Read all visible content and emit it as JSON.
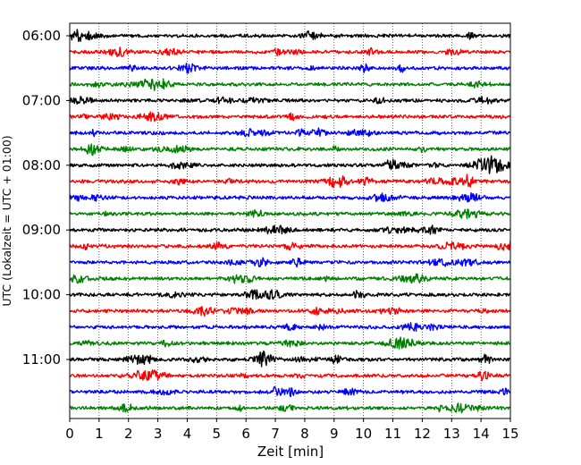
{
  "chart_data": {
    "type": "line",
    "title": "",
    "xlabel": "Zeit  [min]",
    "ylabel": "UTC (Lokalzeit = UTC + 01:00)",
    "xlim": [
      0,
      15
    ],
    "x_ticks": [
      0,
      1,
      2,
      3,
      4,
      5,
      6,
      7,
      8,
      9,
      10,
      11,
      12,
      13,
      14,
      15
    ],
    "y_tick_labels": [
      "06:00",
      "07:00",
      "08:00",
      "09:00",
      "10:00",
      "11:00"
    ],
    "grid": "vertical dotted",
    "trace_colors": [
      "#000000",
      "#ff0000",
      "#0000ff",
      "#008000"
    ],
    "traces_per_hour": 4,
    "trace_count": 24,
    "start_time": "06:00",
    "trace_interval_min": 15
  }
}
